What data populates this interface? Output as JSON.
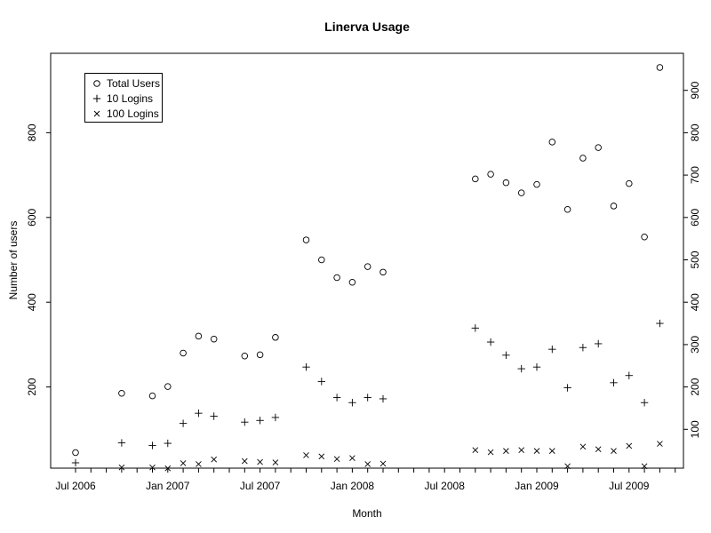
{
  "chart_data": {
    "type": "scatter",
    "title": "Linerva Usage",
    "xlabel": "Month",
    "ylabel": "Number of users",
    "x_tick_labels": [
      "Jul 2006",
      "Jan 2007",
      "Jul 2007",
      "Jan 2008",
      "Jul 2008",
      "Jan 2009",
      "Jul 2009"
    ],
    "x_tick_months": [
      0,
      6,
      12,
      18,
      24,
      30,
      36
    ],
    "x_minor_tick_count": 40,
    "left_y_ticks": [
      200,
      400,
      600,
      800
    ],
    "right_y_ticks": [
      100,
      200,
      300,
      400,
      500,
      600,
      700,
      800,
      900
    ],
    "ylim": [
      0,
      990
    ],
    "grid": false,
    "legend_position": "top-left",
    "series": [
      {
        "name": "Total Users",
        "symbol": "circle",
        "points": [
          [
            "2006-07",
            45
          ],
          [
            "2006-10",
            185
          ],
          [
            "2006-12",
            179
          ],
          [
            "2007-01",
            201
          ],
          [
            "2007-02",
            280
          ],
          [
            "2007-03",
            320
          ],
          [
            "2007-04",
            313
          ],
          [
            "2007-06",
            273
          ],
          [
            "2007-07",
            276
          ],
          [
            "2007-08",
            317
          ],
          [
            "2007-10",
            547
          ],
          [
            "2007-11",
            500
          ],
          [
            "2007-12",
            458
          ],
          [
            "2008-01",
            447
          ],
          [
            "2008-02",
            484
          ],
          [
            "2008-03",
            471
          ],
          [
            "2008-09",
            691
          ],
          [
            "2008-10",
            702
          ],
          [
            "2008-11",
            682
          ],
          [
            "2008-12",
            658
          ],
          [
            "2009-01",
            678
          ],
          [
            "2009-02",
            778
          ],
          [
            "2009-03",
            619
          ],
          [
            "2009-04",
            740
          ],
          [
            "2009-05",
            765
          ],
          [
            "2009-06",
            627
          ],
          [
            "2009-07",
            680
          ],
          [
            "2009-08",
            554
          ],
          [
            "2009-09",
            954
          ]
        ]
      },
      {
        "name": "10 Logins",
        "symbol": "plus",
        "points": [
          [
            "2006-07",
            21
          ],
          [
            "2006-10",
            68
          ],
          [
            "2006-12",
            62
          ],
          [
            "2007-01",
            67
          ],
          [
            "2007-02",
            114
          ],
          [
            "2007-03",
            138
          ],
          [
            "2007-04",
            131
          ],
          [
            "2007-06",
            117
          ],
          [
            "2007-07",
            121
          ],
          [
            "2007-08",
            128
          ],
          [
            "2007-10",
            247
          ],
          [
            "2007-11",
            213
          ],
          [
            "2007-12",
            175
          ],
          [
            "2008-01",
            163
          ],
          [
            "2008-02",
            175
          ],
          [
            "2008-03",
            172
          ],
          [
            "2008-09",
            339
          ],
          [
            "2008-10",
            306
          ],
          [
            "2008-11",
            275
          ],
          [
            "2008-12",
            243
          ],
          [
            "2009-01",
            247
          ],
          [
            "2009-02",
            289
          ],
          [
            "2009-03",
            198
          ],
          [
            "2009-04",
            293
          ],
          [
            "2009-05",
            302
          ],
          [
            "2009-06",
            210
          ],
          [
            "2009-07",
            227
          ],
          [
            "2009-08",
            163
          ],
          [
            "2009-09",
            350
          ]
        ]
      },
      {
        "name": "100 Logins",
        "symbol": "x",
        "points": [
          [
            "2006-10",
            10
          ],
          [
            "2006-12",
            10
          ],
          [
            "2007-01",
            8
          ],
          [
            "2007-02",
            20
          ],
          [
            "2007-03",
            18
          ],
          [
            "2007-04",
            29
          ],
          [
            "2007-06",
            25
          ],
          [
            "2007-07",
            23
          ],
          [
            "2007-08",
            22
          ],
          [
            "2007-10",
            39
          ],
          [
            "2007-11",
            36
          ],
          [
            "2007-12",
            30
          ],
          [
            "2008-01",
            32
          ],
          [
            "2008-02",
            18
          ],
          [
            "2008-03",
            19
          ],
          [
            "2008-09",
            51
          ],
          [
            "2008-10",
            46
          ],
          [
            "2008-11",
            49
          ],
          [
            "2008-12",
            51
          ],
          [
            "2009-01",
            49
          ],
          [
            "2009-02",
            49
          ],
          [
            "2009-03",
            13
          ],
          [
            "2009-04",
            59
          ],
          [
            "2009-05",
            53
          ],
          [
            "2009-06",
            49
          ],
          [
            "2009-07",
            61
          ],
          [
            "2009-08",
            13
          ],
          [
            "2009-09",
            66
          ]
        ]
      }
    ]
  },
  "legend": {
    "items": [
      {
        "symbol": "circle",
        "label": "Total Users"
      },
      {
        "symbol": "plus",
        "label": "10 Logins"
      },
      {
        "symbol": "x",
        "label": "100 Logins"
      }
    ]
  },
  "colors": {
    "foreground": "#000000",
    "background": "#ffffff"
  }
}
